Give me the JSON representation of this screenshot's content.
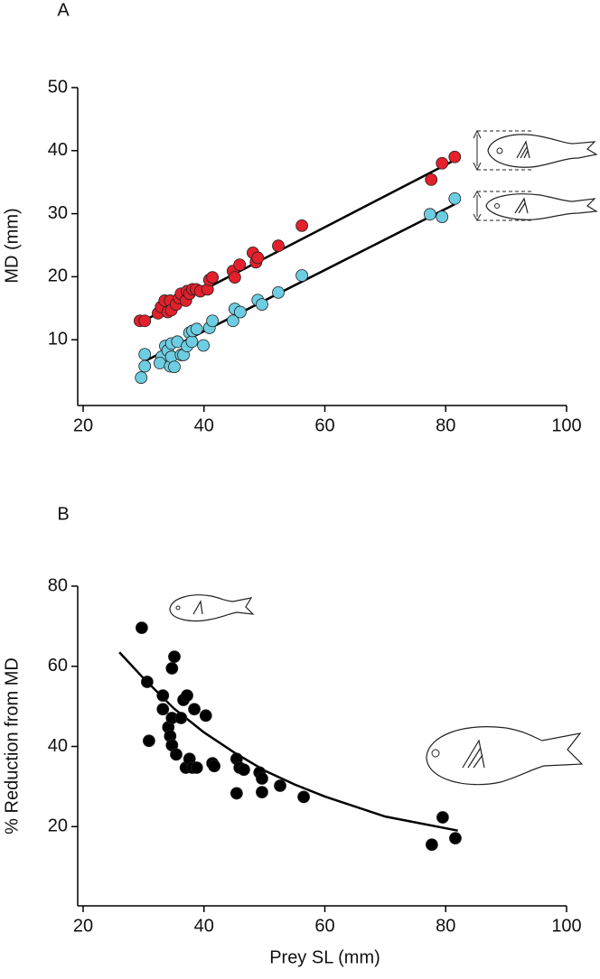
{
  "chart_data": [
    {
      "type": "scatter",
      "label": "A",
      "ylabel": "MD (mm)",
      "xlim": [
        20,
        100
      ],
      "xticks": [
        20,
        40,
        60,
        80,
        100
      ],
      "ylim": [
        0,
        50
      ],
      "yticks": [
        10,
        20,
        30,
        40,
        50
      ],
      "series": [
        {
          "color": "#e3202b",
          "x": [
            29.4,
            30.2,
            32.4,
            32.9,
            33.5,
            34,
            34.4,
            34.6,
            35.4,
            35.9,
            36.2,
            37,
            37.2,
            37.6,
            38.1,
            38.7,
            39.4,
            40.6,
            40.9,
            41.4,
            44.8,
            45.1,
            45.9,
            48.1,
            48.6,
            48.9,
            52.3,
            56.2,
            77.6,
            79.4,
            81.5
          ],
          "values": [
            13,
            13,
            14.2,
            15.2,
            16.2,
            14.4,
            16.2,
            14.7,
            15.6,
            16.6,
            17.3,
            16.2,
            17.7,
            17.3,
            18,
            18,
            17.7,
            18,
            19.5,
            19.9,
            20.9,
            19.9,
            21.9,
            23.8,
            22.3,
            23,
            24.9,
            28.1,
            35.4,
            38,
            39
          ]
        },
        {
          "color": "#6dcde2",
          "x": [
            29.6,
            30.2,
            30.2,
            33,
            32.7,
            33.6,
            34,
            34.4,
            34.6,
            34.6,
            35.6,
            35.1,
            36.2,
            36.6,
            37.2,
            37.6,
            38,
            38.1,
            38.8,
            39.9,
            40.9,
            41.4,
            44.8,
            45.1,
            46,
            48.9,
            49.6,
            52.3,
            56.2,
            77.4,
            79.4,
            81.5
          ],
          "values": [
            4,
            5.8,
            7.7,
            7.3,
            6.3,
            9,
            8.3,
            5.8,
            7.3,
            9.4,
            9.7,
            5.7,
            7.6,
            7.6,
            9,
            11.1,
            9.7,
            11.4,
            11.7,
            9.1,
            11.9,
            13,
            13,
            14.9,
            14.4,
            16.3,
            15.6,
            17.5,
            20.2,
            29.9,
            29.5,
            32.4
          ]
        }
      ],
      "fits": [
        {
          "x": [
            30,
            81.5
          ],
          "values": [
            13,
            38.5
          ]
        },
        {
          "x": [
            30,
            81.5
          ],
          "values": [
            6.5,
            31.5
          ]
        }
      ]
    },
    {
      "type": "scatter",
      "label": "B",
      "xlabel": "Prey SL (mm)",
      "ylabel": "% Reduction from MD",
      "xlim": [
        20,
        100
      ],
      "xticks": [
        20,
        40,
        60,
        80,
        100
      ],
      "ylim": [
        0,
        80
      ],
      "yticks": [
        20,
        40,
        60,
        80
      ],
      "series": [
        {
          "color": "#000000",
          "x": [
            29.7,
            30.6,
            30.9,
            33.2,
            33.2,
            34.1,
            34.4,
            34.7,
            34.7,
            35.1,
            34.7,
            35.4,
            36.2,
            36.6,
            37.2,
            37,
            37.6,
            38.1,
            38.4,
            38.8,
            40.3,
            41.4,
            41.7,
            45.4,
            45.4,
            45.9,
            46.6,
            49.2,
            49.6,
            49.6,
            52.6,
            56.5,
            77.7,
            79.5,
            81.6
          ],
          "values": [
            69.6,
            56.1,
            41.4,
            52.7,
            49.3,
            44.8,
            42.6,
            47.1,
            59.5,
            62.4,
            40.3,
            38,
            47.1,
            51.6,
            52.7,
            34.7,
            36.9,
            34.7,
            49.3,
            34.7,
            47.7,
            35.8,
            35.1,
            36.9,
            28.3,
            34.7,
            34.2,
            33.5,
            32,
            28.6,
            30.2,
            27.4,
            15.5,
            22.3,
            17.1
          ]
        }
      ],
      "fits": [
        {
          "x": [
            26,
            30,
            35,
            40,
            45,
            50,
            55,
            60,
            70,
            82
          ],
          "values": [
            63.5,
            57,
            49.5,
            43.5,
            38.5,
            34,
            30.5,
            27.5,
            22.5,
            19
          ]
        }
      ]
    }
  ]
}
